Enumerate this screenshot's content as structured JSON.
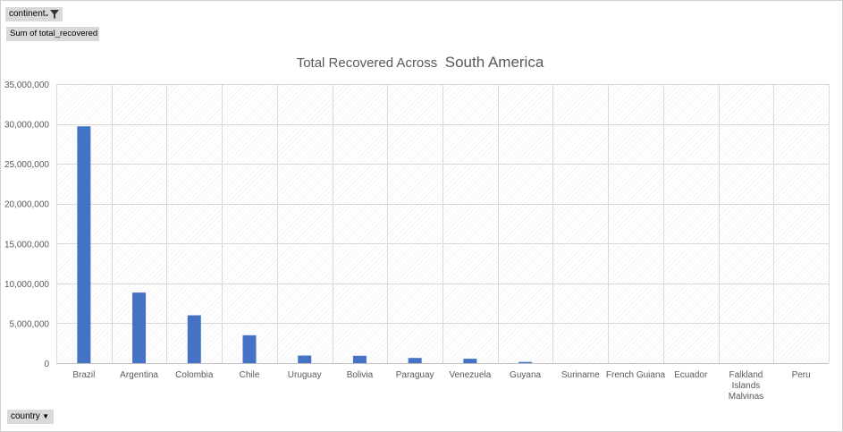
{
  "pivot": {
    "filter_field": "continent",
    "value_field": "Sum of total_recovered",
    "axis_field": "country"
  },
  "icons": {
    "filter": "funnel-icon",
    "dropdown": "chevron-down-icon"
  },
  "colors": {
    "bar": "#4472C4",
    "field_button": "#d9d9d9",
    "gridline": "#d9d9d9"
  },
  "chart_data": {
    "type": "bar",
    "title_part1": "Total Recovered Across",
    "title_part2": "South America",
    "categories": [
      [
        "Brazil"
      ],
      [
        "Argentina"
      ],
      [
        "Colombia"
      ],
      [
        "Chile"
      ],
      [
        "Uruguay"
      ],
      [
        "Bolivia"
      ],
      [
        "Paraguay"
      ],
      [
        "Venezuela"
      ],
      [
        "Guyana"
      ],
      [
        "Suriname"
      ],
      [
        "French Guiana"
      ],
      [
        "Ecuador"
      ],
      [
        "Falkland",
        "Islands",
        "Malvinas"
      ],
      [
        "Peru"
      ]
    ],
    "values": [
      29700000,
      8850000,
      6000000,
      3500000,
      950000,
      920000,
      650000,
      550000,
      150000,
      0,
      0,
      0,
      0,
      0
    ],
    "yticks": [
      "0",
      "5,000,000",
      "10,000,000",
      "15,000,000",
      "20,000,000",
      "25,000,000",
      "30,000,000",
      "35,000,000"
    ],
    "ylim": [
      0,
      35000000
    ],
    "xlabel": "",
    "ylabel": "",
    "grid": true
  }
}
